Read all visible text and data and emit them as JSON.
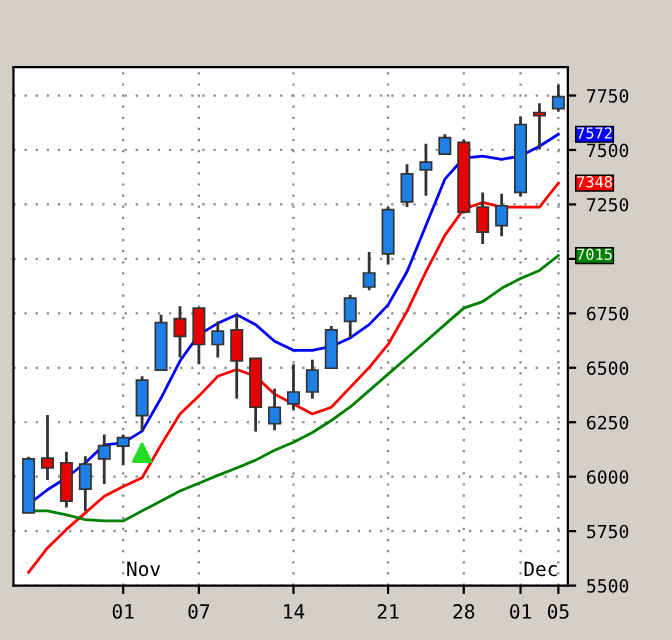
{
  "chart_data": {
    "type": "candlestick",
    "categories": [
      null,
      null,
      null,
      null,
      null,
      "01",
      null,
      null,
      null,
      "07",
      null,
      null,
      null,
      null,
      "14",
      null,
      null,
      null,
      null,
      "21",
      null,
      null,
      null,
      "28",
      null,
      null,
      "01",
      null,
      "05"
    ],
    "ohlc": [
      [
        5834,
        6091,
        5834,
        6082
      ],
      [
        6085,
        6283,
        5985,
        6040
      ],
      [
        6064,
        6115,
        5858,
        5888
      ],
      [
        5943,
        6094,
        5843,
        6058
      ],
      [
        6082,
        6194,
        5967,
        6143
      ],
      [
        6140,
        6194,
        6052,
        6179
      ],
      [
        6280,
        6461,
        6209,
        6443
      ],
      [
        6489,
        6744,
        6489,
        6707
      ],
      [
        6726,
        6783,
        6547,
        6644
      ],
      [
        6774,
        6774,
        6516,
        6607
      ],
      [
        6607,
        6713,
        6547,
        6668
      ],
      [
        6674,
        6744,
        6358,
        6531
      ],
      [
        6543,
        6543,
        6207,
        6319
      ],
      [
        6243,
        6404,
        6213,
        6319
      ],
      [
        6334,
        6516,
        6304,
        6389
      ],
      [
        6389,
        6537,
        6358,
        6489
      ],
      [
        6498,
        6692,
        6498,
        6674
      ],
      [
        6713,
        6835,
        6637,
        6820
      ],
      [
        6871,
        7032,
        6856,
        6935
      ],
      [
        7023,
        7238,
        6974,
        7226
      ],
      [
        7262,
        7435,
        7238,
        7390
      ],
      [
        7408,
        7529,
        7290,
        7444
      ],
      [
        7481,
        7572,
        7481,
        7557
      ],
      [
        7535,
        7547,
        7208,
        7214
      ],
      [
        7238,
        7305,
        7068,
        7123
      ],
      [
        7153,
        7299,
        7104,
        7244
      ],
      [
        7305,
        7654,
        7287,
        7617
      ],
      [
        7672,
        7714,
        7502,
        7657
      ],
      [
        7690,
        7799,
        7675,
        7745
      ]
    ],
    "colors": [
      "#1e7fe6",
      "#e60000",
      "#e60000",
      "#1e7fe6",
      "#1e7fe6",
      "#1e7fe6",
      "#1e7fe6",
      "#1e7fe6",
      "#e60000",
      "#e60000",
      "#1e7fe6",
      "#e60000",
      "#e60000",
      "#1e7fe6",
      "#1e7fe6",
      "#1e7fe6",
      "#1e7fe6",
      "#1e7fe6",
      "#1e7fe6",
      "#1e7fe6",
      "#1e7fe6",
      "#1e7fe6",
      "#1e7fe6",
      "#e60000",
      "#e60000",
      "#1e7fe6",
      "#1e7fe6",
      "#e60000",
      "#1e7fe6"
    ],
    "series": [
      {
        "type": "line",
        "color": "#0000ff",
        "values": [
          5873,
          5940,
          5995,
          6064,
          6146,
          6155,
          6209,
          6361,
          6531,
          6652,
          6704,
          6744,
          6698,
          6622,
          6580,
          6580,
          6598,
          6637,
          6698,
          6789,
          6941,
          7153,
          7366,
          7463,
          7472,
          7457,
          7472,
          7517,
          7572
        ],
        "value_labels": [
          null,
          null,
          null,
          null,
          null,
          null,
          null,
          null,
          null,
          null,
          null,
          null,
          null,
          null,
          null,
          null,
          null,
          null,
          null,
          null,
          null,
          null,
          null,
          null,
          null,
          null,
          null,
          null,
          "7572"
        ]
      },
      {
        "type": "line",
        "color": "#ff0000",
        "values": [
          5561,
          5673,
          5758,
          5834,
          5910,
          5955,
          5995,
          6146,
          6288,
          6370,
          6461,
          6492,
          6461,
          6379,
          6334,
          6288,
          6319,
          6410,
          6501,
          6607,
          6759,
          6941,
          7108,
          7229,
          7259,
          7238,
          7238,
          7238,
          7348
        ],
        "value_labels": [
          null,
          null,
          null,
          null,
          null,
          null,
          null,
          null,
          null,
          null,
          null,
          null,
          null,
          null,
          null,
          null,
          null,
          null,
          null,
          null,
          null,
          null,
          null,
          null,
          null,
          null,
          null,
          null,
          "7348"
        ]
      },
      {
        "type": "line",
        "color": "#008000",
        "values": [
          5843,
          5843,
          5825,
          5803,
          5797,
          5797,
          5843,
          5888,
          5934,
          5970,
          6006,
          6040,
          6076,
          6121,
          6158,
          6203,
          6258,
          6320,
          6395,
          6471,
          6546,
          6622,
          6698,
          6774,
          6804,
          6865,
          6910,
          6947,
          7015
        ],
        "value_labels": [
          null,
          null,
          null,
          null,
          null,
          null,
          null,
          null,
          null,
          null,
          null,
          null,
          null,
          null,
          null,
          null,
          null,
          null,
          null,
          null,
          null,
          null,
          null,
          null,
          null,
          null,
          null,
          null,
          "7015"
        ]
      },
      {
        "type": "scatter",
        "color": "#22dd22",
        "marker": "triangle",
        "values": [
          null,
          null,
          null,
          null,
          null,
          null,
          6110,
          null,
          null,
          null,
          null,
          null,
          null,
          null,
          null,
          null,
          null,
          null,
          null,
          null,
          null,
          null,
          null,
          null,
          null,
          null,
          null,
          null,
          null
        ]
      }
    ],
    "ylim": [
      5500,
      7880
    ],
    "yticks": [
      5500,
      5750,
      6000,
      6250,
      6500,
      6750,
      {
        "value": 7000,
        "label": null
      },
      7250,
      7500,
      7750
    ],
    "grid": true,
    "annotations": [
      "Nov",
      "Dec"
    ]
  }
}
